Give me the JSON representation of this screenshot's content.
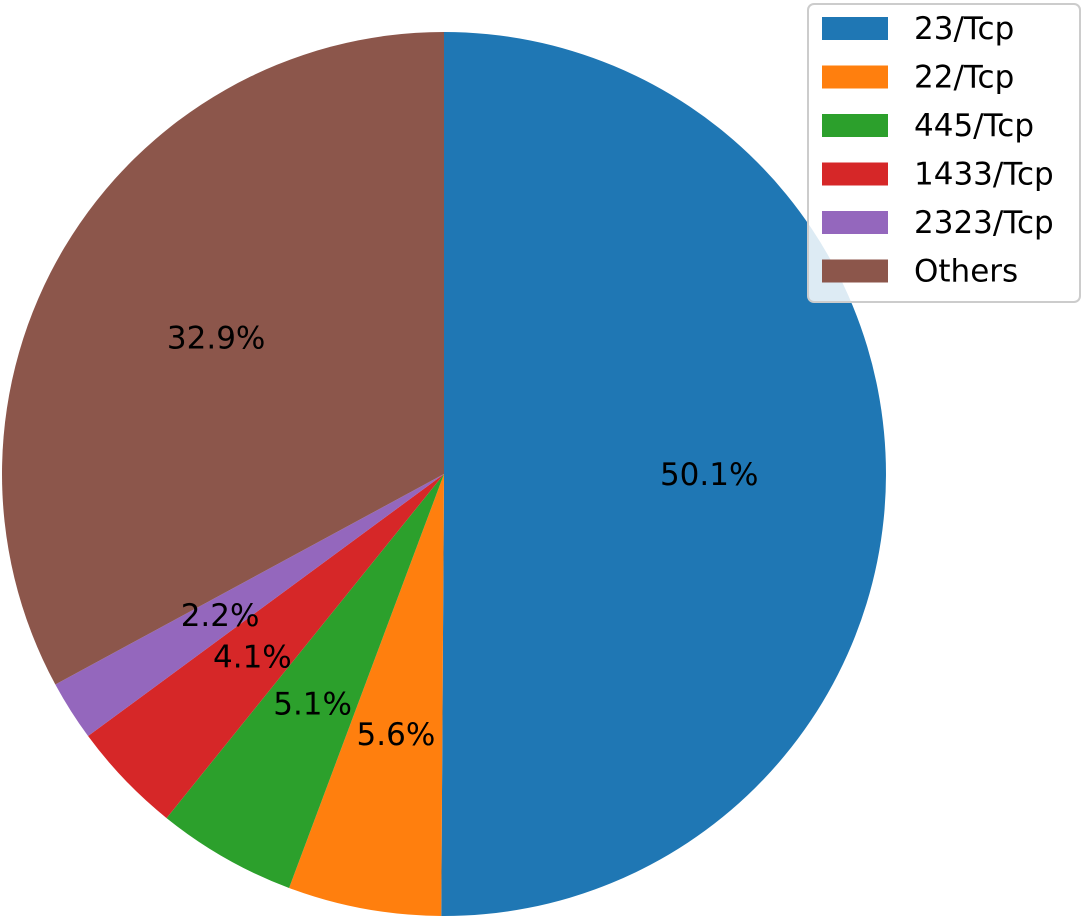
{
  "chart_data": {
    "type": "pie",
    "title": "",
    "categories": [
      "23/Tcp",
      "22/Tcp",
      "445/Tcp",
      "1433/Tcp",
      "2323/Tcp",
      "Others"
    ],
    "values": [
      50.1,
      5.6,
      5.1,
      4.1,
      2.2,
      32.9
    ],
    "labels": [
      "50.1%",
      "5.6%",
      "5.1%",
      "4.1%",
      "2.2%",
      "32.9%"
    ],
    "colors": [
      "#1f77b4",
      "#ff7f0e",
      "#2ca02c",
      "#d62728",
      "#9467bd",
      "#8c564b"
    ],
    "start_angle_deg": 90,
    "direction": "clockwise",
    "legend_position": "top-right"
  }
}
